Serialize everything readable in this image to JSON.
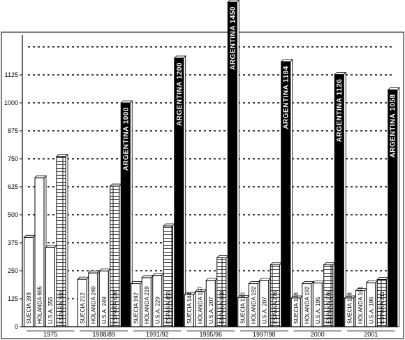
{
  "chart_data": {
    "type": "bar",
    "title": "",
    "xlabel": "",
    "ylabel": "",
    "ylim": [
      0,
      1450
    ],
    "yticks": [
      0,
      125,
      250,
      375,
      500,
      625,
      750,
      875,
      1000,
      1125
    ],
    "grid": "dotted-horizontal",
    "categories": [
      "1975",
      "1988/89",
      "1991/92",
      "1995/96",
      "1997/98",
      "2000",
      "2001"
    ],
    "groups": [
      {
        "category": "1975",
        "bars": [
          {
            "label": "SUECIA 399",
            "value": 399,
            "style": "white"
          },
          {
            "label": "HOLANDA 665",
            "value": 665,
            "style": "white"
          },
          {
            "label": "U.S.A. 355",
            "value": 355,
            "style": "white"
          },
          {
            "label": "ESPAÑA 760",
            "value": 760,
            "style": "hatched"
          }
        ]
      },
      {
        "category": "1988/89",
        "bars": [
          {
            "label": "SUECIA 212",
            "value": 212,
            "style": "white"
          },
          {
            "label": "HOLANDA 240",
            "value": 240,
            "style": "white"
          },
          {
            "label": "U.S.A. 249",
            "value": 249,
            "style": "white"
          },
          {
            "label": "ESPAÑA 628",
            "value": 628,
            "style": "hatched"
          },
          {
            "label": "ARGENTINA 1000",
            "value": 1000,
            "style": "black"
          }
        ]
      },
      {
        "category": "1991/92",
        "bars": [
          {
            "label": "SUECIA 192",
            "value": 192,
            "style": "white"
          },
          {
            "label": "HOLANDA 219",
            "value": 219,
            "style": "white"
          },
          {
            "label": "U.S.A. 229",
            "value": 229,
            "style": "white"
          },
          {
            "label": "ESPAÑA 450",
            "value": 450,
            "style": "hatched"
          },
          {
            "label": "ARGENTINA 1200",
            "value": 1200,
            "style": "black"
          }
        ]
      },
      {
        "category": "1995/96",
        "bars": [
          {
            "label": "SUECIA 144",
            "value": 144,
            "style": "white"
          },
          {
            "label": "HOLANDA 157",
            "value": 157,
            "style": "white"
          },
          {
            "label": "U.S.A. 207",
            "value": 207,
            "style": "white"
          },
          {
            "label": "ESPAÑA 308",
            "value": 308,
            "style": "hatched"
          },
          {
            "label": "ARGENTINA 1450",
            "value": 1450,
            "style": "black"
          }
        ]
      },
      {
        "category": "1997/98",
        "bars": [
          {
            "label": "SUECIA 130",
            "value": 130,
            "style": "white"
          },
          {
            "label": "HOLANDA 192",
            "value": 192,
            "style": "white"
          },
          {
            "label": "U.S.A. 207",
            "value": 207,
            "style": "white"
          },
          {
            "label": "ESPAÑA 276",
            "value": 276,
            "style": "hatched"
          },
          {
            "label": "ARGENTINA 1184",
            "value": 1184,
            "style": "black"
          }
        ]
      },
      {
        "category": "2000",
        "bars": [
          {
            "label": "SUECIA 128",
            "value": 128,
            "style": "white"
          },
          {
            "label": "HOLANDA 192",
            "value": 192,
            "style": "white"
          },
          {
            "label": "U.S.A. 195",
            "value": 195,
            "style": "white"
          },
          {
            "label": "ESPAÑA 276",
            "value": 276,
            "style": "hatched"
          },
          {
            "label": "ARGENTINA 1126",
            "value": 1126,
            "style": "black"
          }
        ]
      },
      {
        "category": "2001",
        "bars": [
          {
            "label": "SUECIA 128",
            "value": 128,
            "style": "white"
          },
          {
            "label": "HOLANDA 161",
            "value": 161,
            "style": "white"
          },
          {
            "label": "U.S.A. 196",
            "value": 196,
            "style": "white"
          },
          {
            "label": "ESPAÑA 211",
            "value": 211,
            "style": "hatched"
          },
          {
            "label": "ARGENTINA 1058",
            "value": 1058,
            "style": "black"
          }
        ]
      }
    ],
    "colors": {
      "bar_fill": "#ffffff",
      "bar_stroke": "#000000",
      "highlight_fill": "#000000",
      "grid": "#000000"
    }
  }
}
